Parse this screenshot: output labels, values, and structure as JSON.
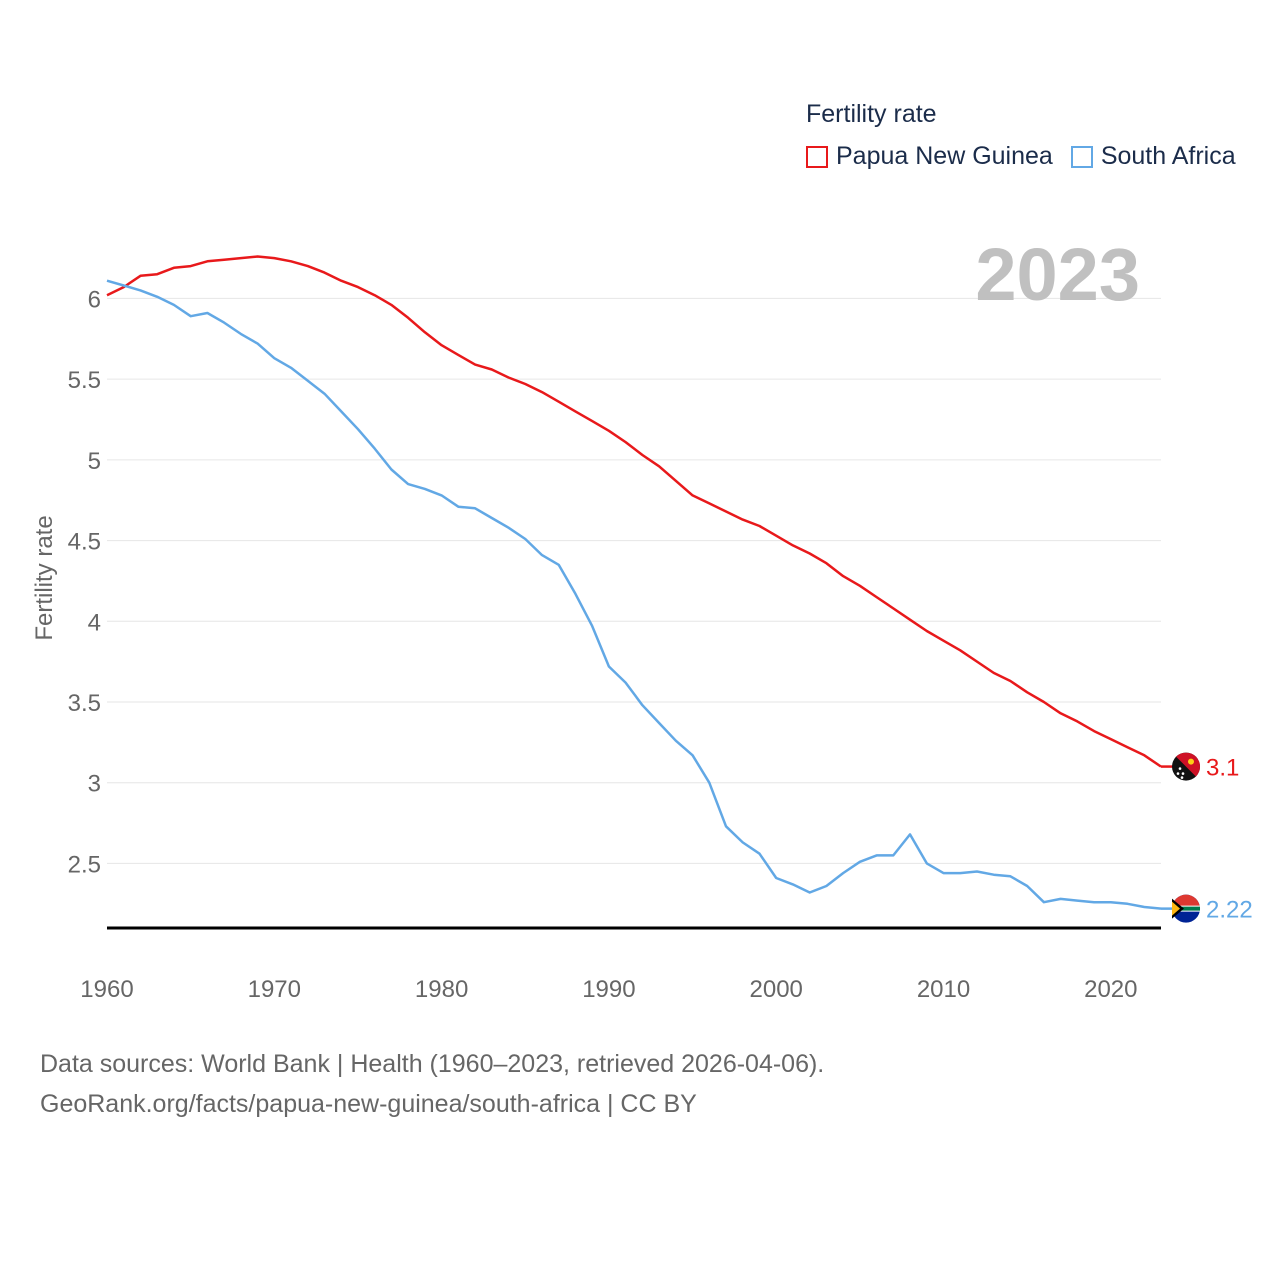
{
  "legend": {
    "title": "Fertility rate",
    "items": [
      {
        "label": "Papua New Guinea",
        "color": "#e8191b"
      },
      {
        "label": "South Africa",
        "color": "#62a8e5"
      }
    ]
  },
  "footer": {
    "line1": "Data sources: World Bank | Health (1960–2023, retrieved 2026-04-06).",
    "line2": "GeoRank.org/facts/papua-new-guinea/south-africa | CC BY"
  },
  "chart_data": {
    "type": "line",
    "title": "Fertility rate",
    "year_label": "2023",
    "ylabel": "Fertility rate",
    "xlabel": "",
    "xlim": [
      1960,
      2023
    ],
    "ylim": [
      2.1,
      6.3
    ],
    "x_ticks": [
      1960,
      1970,
      1980,
      1990,
      2000,
      2010,
      2020
    ],
    "y_ticks": [
      2.5,
      3,
      3.5,
      4,
      4.5,
      5,
      5.5,
      6
    ],
    "legend_position": "top-right",
    "x": [
      1960,
      1961,
      1962,
      1963,
      1964,
      1965,
      1966,
      1967,
      1968,
      1969,
      1970,
      1971,
      1972,
      1973,
      1974,
      1975,
      1976,
      1977,
      1978,
      1979,
      1980,
      1981,
      1982,
      1983,
      1984,
      1985,
      1986,
      1987,
      1988,
      1989,
      1990,
      1991,
      1992,
      1993,
      1994,
      1995,
      1996,
      1997,
      1998,
      1999,
      2000,
      2001,
      2002,
      2003,
      2004,
      2005,
      2006,
      2007,
      2008,
      2009,
      2010,
      2011,
      2012,
      2013,
      2014,
      2015,
      2016,
      2017,
      2018,
      2019,
      2020,
      2021,
      2022,
      2023
    ],
    "series": [
      {
        "name": "Papua New Guinea",
        "color": "#e8191b",
        "end_label": "3.1",
        "values": [
          6.02,
          6.07,
          6.14,
          6.15,
          6.19,
          6.2,
          6.23,
          6.24,
          6.25,
          6.26,
          6.25,
          6.23,
          6.2,
          6.16,
          6.11,
          6.07,
          6.02,
          5.96,
          5.88,
          5.79,
          5.71,
          5.65,
          5.59,
          5.56,
          5.51,
          5.47,
          5.42,
          5.36,
          5.3,
          5.24,
          5.18,
          5.11,
          5.03,
          4.96,
          4.87,
          4.78,
          4.73,
          4.68,
          4.63,
          4.59,
          4.53,
          4.47,
          4.42,
          4.36,
          4.28,
          4.22,
          4.15,
          4.08,
          4.01,
          3.94,
          3.88,
          3.82,
          3.75,
          3.68,
          3.63,
          3.56,
          3.5,
          3.43,
          3.38,
          3.32,
          3.27,
          3.22,
          3.17,
          3.1
        ]
      },
      {
        "name": "South Africa",
        "color": "#62a8e5",
        "end_label": "2.22",
        "values": [
          6.11,
          6.08,
          6.05,
          6.01,
          5.96,
          5.89,
          5.91,
          5.85,
          5.78,
          5.72,
          5.63,
          5.57,
          5.49,
          5.41,
          5.3,
          5.19,
          5.07,
          4.94,
          4.85,
          4.82,
          4.78,
          4.71,
          4.7,
          4.64,
          4.58,
          4.51,
          4.41,
          4.35,
          4.17,
          3.97,
          3.72,
          3.62,
          3.48,
          3.37,
          3.26,
          3.17,
          3.0,
          2.73,
          2.63,
          2.56,
          2.41,
          2.37,
          2.32,
          2.36,
          2.44,
          2.51,
          2.55,
          2.55,
          2.68,
          2.5,
          2.44,
          2.44,
          2.45,
          2.43,
          2.42,
          2.36,
          2.26,
          2.28,
          2.27,
          2.26,
          2.26,
          2.25,
          2.23,
          2.22
        ]
      }
    ]
  }
}
